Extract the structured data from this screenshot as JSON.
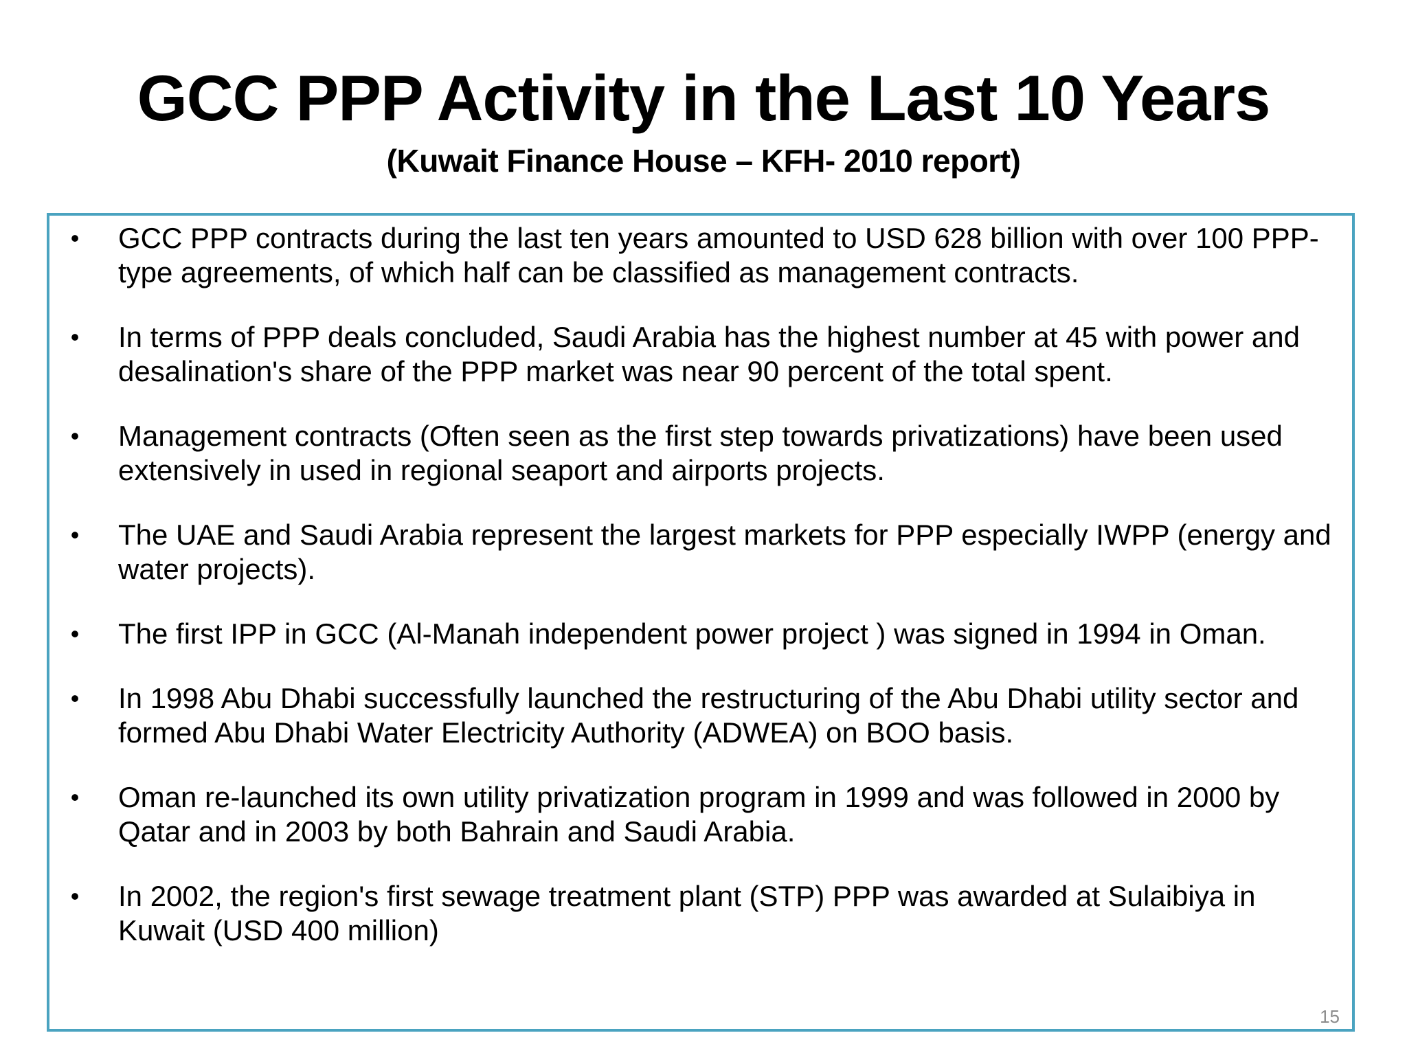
{
  "slide": {
    "title": "GCC PPP Activity in the Last 10 Years",
    "subtitle": "(Kuwait Finance House – KFH- 2010 report)",
    "page_number": "15",
    "border_color": "#4aa3c0",
    "bullet_symbol": "•",
    "bullets": [
      "GCC PPP contracts during the last ten years amounted to USD 628 billion with over 100 PPP-type agreements, of which half can be classified as management contracts.",
      "In terms of PPP deals concluded, Saudi Arabia has the highest number at 45 with power and desalination's share of the PPP market was near 90 percent of the total spent.",
      "Management contracts (Often seen as the first step towards privatizations) have been used extensively in used in regional seaport and  airports projects.",
      "The UAE and Saudi Arabia represent the largest markets for PPP especially IWPP (energy and water projects).",
      "The first IPP in GCC (Al-Manah independent power project ) was signed in 1994 in Oman.",
      "In 1998 Abu Dhabi successfully launched the restructuring of the Abu Dhabi utility sector and formed Abu Dhabi Water Electricity Authority (ADWEA) on BOO basis.",
      "Oman re-launched its own utility privatization program in 1999 and was followed in 2000 by Qatar and in 2003 by both Bahrain and Saudi Arabia.",
      "In 2002, the region's first sewage treatment plant (STP) PPP was awarded at Sulaibiya in Kuwait (USD 400 million)"
    ]
  }
}
